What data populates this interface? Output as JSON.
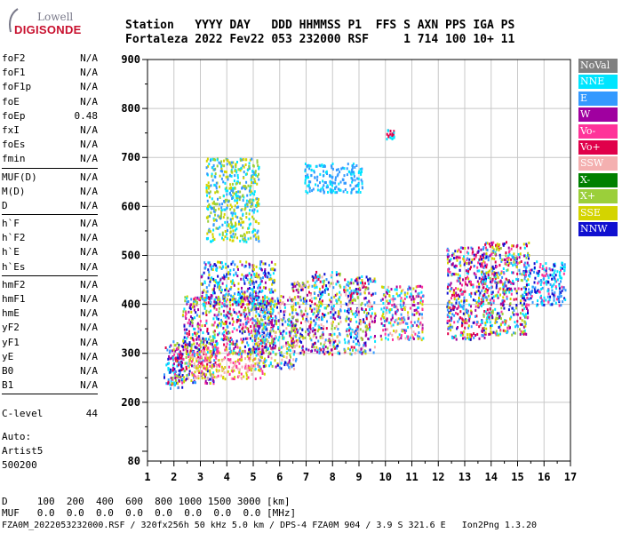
{
  "logo": {
    "line1": "Lowell",
    "line2": "DIGISONDE"
  },
  "header": {
    "row1": "Station   YYYY DAY   DDD HHMMSS P1  FFS S AXN PPS IGA PS",
    "row2": "Fortaleza 2022 Fev22 053 232000 RSF     1 714 100 10+ 11"
  },
  "params": [
    {
      "k": "foF2",
      "v": "N/A"
    },
    {
      "k": "foF1",
      "v": "N/A"
    },
    {
      "k": "foF1p",
      "v": "N/A"
    },
    {
      "k": "foE",
      "v": "N/A"
    },
    {
      "k": "foEp",
      "v": "0.48"
    },
    {
      "k": "fxI",
      "v": "N/A"
    },
    {
      "k": "foEs",
      "v": "N/A"
    },
    {
      "k": "fmin",
      "v": "N/A"
    },
    {
      "k": "MUF(D)",
      "v": "N/A"
    },
    {
      "k": "M(D)",
      "v": "N/A"
    },
    {
      "k": "D",
      "v": "N/A"
    },
    {
      "k": "h`F",
      "v": "N/A"
    },
    {
      "k": "h`F2",
      "v": "N/A"
    },
    {
      "k": "h`E",
      "v": "N/A"
    },
    {
      "k": "h`Es",
      "v": "N/A"
    },
    {
      "k": "hmF2",
      "v": "N/A"
    },
    {
      "k": "hmF1",
      "v": "N/A"
    },
    {
      "k": "hmE",
      "v": "N/A"
    },
    {
      "k": "yF2",
      "v": "N/A"
    },
    {
      "k": "yF1",
      "v": "N/A"
    },
    {
      "k": "yE",
      "v": "N/A"
    },
    {
      "k": "B0",
      "v": "N/A"
    },
    {
      "k": "B1",
      "v": "N/A"
    }
  ],
  "clevel": {
    "k": "C-level",
    "v": "44"
  },
  "auto": {
    "l1": "Auto:",
    "l2": "Artist5",
    "l3": "500200"
  },
  "bottom": {
    "d_row": "D     100  200  400  600  800 1000 1500 3000 [km]",
    "muf_row": "MUF   0.0  0.0  0.0  0.0  0.0  0.0  0.0  0.0 [MHz]",
    "footer": "FZA0M_2022053232000.RSF / 320fx256h 50 kHz 5.0 km / DPS-4 FZA0M 904 / 3.9 S 321.6 E   Ion2Png 1.3.20"
  },
  "colors": {
    "NoVal": "#808080",
    "NNE": "#00e5ff",
    "E": "#3399ff",
    "W": "#a000a0",
    "Vo-": "#ff3399",
    "Vo+": "#e0004a",
    "SSW": "#f4b0b0",
    "X-": "#008000",
    "X+": "#9bcf3a",
    "SSE": "#d4d400",
    "NNW": "#1010d0"
  },
  "chart_data": {
    "type": "scatter",
    "xlim": [
      1,
      17
    ],
    "ylim": [
      80,
      900
    ],
    "x_ticks": [
      "1",
      "2",
      "3",
      "4",
      "5",
      "6",
      "7",
      "8",
      "9",
      "10",
      "11",
      "12",
      "13",
      "14",
      "15",
      "16",
      "17"
    ],
    "y_ticks": [
      "80",
      "200",
      "300",
      "400",
      "500",
      "600",
      "700",
      "800",
      "900"
    ],
    "legend": [
      "NoVal",
      "NNE",
      "E",
      "W",
      "Vo-",
      "Vo+",
      "SSW",
      "X-",
      "X+",
      "SSE",
      "NNW"
    ],
    "legend_position": "right",
    "grid": true,
    "clusters": [
      {
        "x": [
          1.6,
          2.3
        ],
        "y": [
          230,
          320
        ],
        "colors": [
          "Vo+",
          "W",
          "NNW",
          "E",
          "NNE"
        ]
      },
      {
        "x": [
          1.9,
          3.6
        ],
        "y": [
          240,
          330
        ],
        "colors": [
          "SSE",
          "X+",
          "W",
          "Vo+",
          "E",
          "NNW",
          "NNE",
          "Vo-"
        ]
      },
      {
        "x": [
          2.5,
          5.4
        ],
        "y": [
          250,
          310
        ],
        "colors": [
          "SSW",
          "Vo-",
          "SSE"
        ]
      },
      {
        "x": [
          2.3,
          5.8
        ],
        "y": [
          300,
          420
        ],
        "colors": [
          "E",
          "NNE",
          "W",
          "NNW",
          "Vo+",
          "SSE",
          "X+",
          "Vo-"
        ]
      },
      {
        "x": [
          3.0,
          5.8
        ],
        "y": [
          400,
          490
        ],
        "colors": [
          "E",
          "W",
          "NNE",
          "NNW",
          "SSE"
        ]
      },
      {
        "x": [
          5.0,
          6.6
        ],
        "y": [
          270,
          420
        ],
        "colors": [
          "SSE",
          "X+",
          "W",
          "NNW",
          "NNE",
          "SSW",
          "E"
        ]
      },
      {
        "x": [
          6.4,
          7.2
        ],
        "y": [
          300,
          450
        ],
        "colors": [
          "SSE",
          "W",
          "NNW",
          "E",
          "Vo+",
          "X+",
          "SSW"
        ]
      },
      {
        "x": [
          7.2,
          8.3
        ],
        "y": [
          300,
          470
        ],
        "colors": [
          "SSE",
          "NNW",
          "E",
          "W",
          "Vo+",
          "NNE",
          "X+",
          "SSW"
        ]
      },
      {
        "x": [
          8.4,
          9.6
        ],
        "y": [
          300,
          460
        ],
        "colors": [
          "SSE",
          "NNW",
          "W",
          "E",
          "NNE",
          "Vo+",
          "SSW",
          "X+"
        ]
      },
      {
        "x": [
          9.8,
          11.4
        ],
        "y": [
          330,
          440
        ],
        "colors": [
          "SSW",
          "SSE",
          "E",
          "Vo-",
          "W",
          "NNE"
        ]
      },
      {
        "x": [
          12.3,
          13.8
        ],
        "y": [
          330,
          520
        ],
        "colors": [
          "NNW",
          "E",
          "NNE",
          "Vo+",
          "W",
          "Vo-",
          "SSE"
        ]
      },
      {
        "x": [
          13.6,
          15.4
        ],
        "y": [
          340,
          530
        ],
        "colors": [
          "NNW",
          "E",
          "NNE",
          "Vo+",
          "W",
          "Vo-",
          "SSE",
          "X+"
        ]
      },
      {
        "x": [
          15.2,
          16.8
        ],
        "y": [
          400,
          490
        ],
        "colors": [
          "NNE",
          "E",
          "NNW",
          "Vo-"
        ]
      },
      {
        "x": [
          3.2,
          5.2
        ],
        "y": [
          530,
          700
        ],
        "colors": [
          "SSE",
          "X+",
          "E",
          "NNE"
        ]
      },
      {
        "x": [
          6.9,
          9.1
        ],
        "y": [
          630,
          690
        ],
        "colors": [
          "NNE",
          "E"
        ]
      },
      {
        "x": [
          10.0,
          10.3
        ],
        "y": [
          740,
          760
        ],
        "colors": [
          "Vo+",
          "NNE"
        ]
      }
    ]
  }
}
